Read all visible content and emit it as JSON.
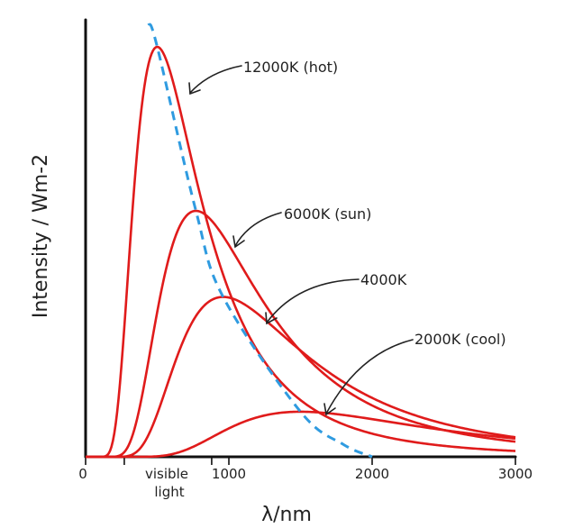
{
  "chart_data": {
    "type": "line",
    "title": "",
    "xlabel": "λ/nm",
    "ylabel": "Intensity / Wm-2",
    "xlim": [
      0,
      3000
    ],
    "ylim": [
      0,
      100
    ],
    "grid": false,
    "x_ticks": [
      {
        "value": 0,
        "label": "0"
      },
      {
        "value": 1000,
        "label": "1000"
      },
      {
        "value": 2000,
        "label": "2000"
      },
      {
        "value": 3000,
        "label": "3000"
      }
    ],
    "visible_light": {
      "label_line1": "visible",
      "label_line2": "light",
      "range": [
        270,
        880
      ]
    },
    "series": [
      {
        "name": "12000K (hot)",
        "temperature_k": 12000,
        "color": "#e01b1b"
      },
      {
        "name": "6000K (sun)",
        "temperature_k": 6000,
        "color": "#e01b1b"
      },
      {
        "name": "4000K",
        "temperature_k": 4000,
        "color": "#e01b1b"
      },
      {
        "name": "2000K (cool)",
        "temperature_k": 2000,
        "color": "#e01b1b"
      }
    ],
    "peaks": [
      {
        "x": 500,
        "y": 100
      },
      {
        "x": 770,
        "y": 60
      },
      {
        "x": 960,
        "y": 39
      },
      {
        "x": 1500,
        "y": 11
      }
    ],
    "peak_locus": {
      "style": "dashed",
      "color": "#2f9be0"
    }
  }
}
